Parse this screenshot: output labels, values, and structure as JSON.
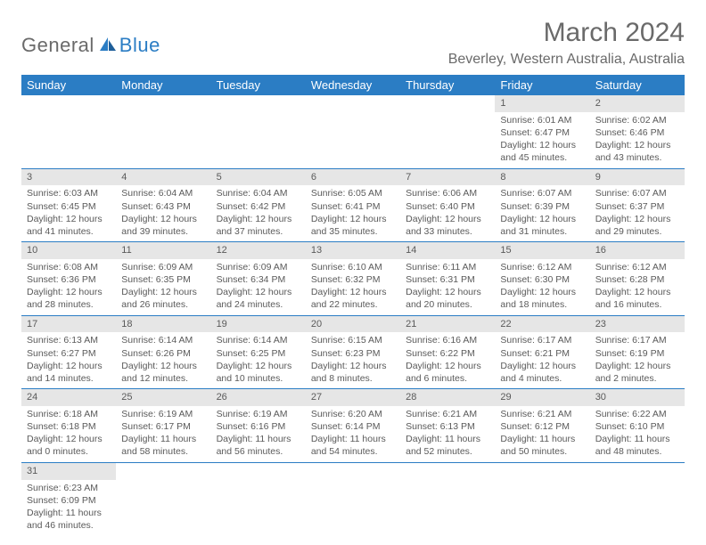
{
  "logo": {
    "general": "General",
    "blue": "Blue"
  },
  "title": {
    "month": "March 2024",
    "location": "Beverley, Western Australia, Australia"
  },
  "dayHeaders": [
    "Sunday",
    "Monday",
    "Tuesday",
    "Wednesday",
    "Thursday",
    "Friday",
    "Saturday"
  ],
  "colors": {
    "header_bg": "#2b7dc4",
    "header_text": "#ffffff",
    "daynum_bg": "#e6e6e6",
    "text": "#5a5a5a",
    "border": "#2b7dc4"
  },
  "weeks": [
    [
      null,
      null,
      null,
      null,
      null,
      {
        "n": "1",
        "sr": "Sunrise: 6:01 AM",
        "ss": "Sunset: 6:47 PM",
        "d1": "Daylight: 12 hours",
        "d2": "and 45 minutes."
      },
      {
        "n": "2",
        "sr": "Sunrise: 6:02 AM",
        "ss": "Sunset: 6:46 PM",
        "d1": "Daylight: 12 hours",
        "d2": "and 43 minutes."
      }
    ],
    [
      {
        "n": "3",
        "sr": "Sunrise: 6:03 AM",
        "ss": "Sunset: 6:45 PM",
        "d1": "Daylight: 12 hours",
        "d2": "and 41 minutes."
      },
      {
        "n": "4",
        "sr": "Sunrise: 6:04 AM",
        "ss": "Sunset: 6:43 PM",
        "d1": "Daylight: 12 hours",
        "d2": "and 39 minutes."
      },
      {
        "n": "5",
        "sr": "Sunrise: 6:04 AM",
        "ss": "Sunset: 6:42 PM",
        "d1": "Daylight: 12 hours",
        "d2": "and 37 minutes."
      },
      {
        "n": "6",
        "sr": "Sunrise: 6:05 AM",
        "ss": "Sunset: 6:41 PM",
        "d1": "Daylight: 12 hours",
        "d2": "and 35 minutes."
      },
      {
        "n": "7",
        "sr": "Sunrise: 6:06 AM",
        "ss": "Sunset: 6:40 PM",
        "d1": "Daylight: 12 hours",
        "d2": "and 33 minutes."
      },
      {
        "n": "8",
        "sr": "Sunrise: 6:07 AM",
        "ss": "Sunset: 6:39 PM",
        "d1": "Daylight: 12 hours",
        "d2": "and 31 minutes."
      },
      {
        "n": "9",
        "sr": "Sunrise: 6:07 AM",
        "ss": "Sunset: 6:37 PM",
        "d1": "Daylight: 12 hours",
        "d2": "and 29 minutes."
      }
    ],
    [
      {
        "n": "10",
        "sr": "Sunrise: 6:08 AM",
        "ss": "Sunset: 6:36 PM",
        "d1": "Daylight: 12 hours",
        "d2": "and 28 minutes."
      },
      {
        "n": "11",
        "sr": "Sunrise: 6:09 AM",
        "ss": "Sunset: 6:35 PM",
        "d1": "Daylight: 12 hours",
        "d2": "and 26 minutes."
      },
      {
        "n": "12",
        "sr": "Sunrise: 6:09 AM",
        "ss": "Sunset: 6:34 PM",
        "d1": "Daylight: 12 hours",
        "d2": "and 24 minutes."
      },
      {
        "n": "13",
        "sr": "Sunrise: 6:10 AM",
        "ss": "Sunset: 6:32 PM",
        "d1": "Daylight: 12 hours",
        "d2": "and 22 minutes."
      },
      {
        "n": "14",
        "sr": "Sunrise: 6:11 AM",
        "ss": "Sunset: 6:31 PM",
        "d1": "Daylight: 12 hours",
        "d2": "and 20 minutes."
      },
      {
        "n": "15",
        "sr": "Sunrise: 6:12 AM",
        "ss": "Sunset: 6:30 PM",
        "d1": "Daylight: 12 hours",
        "d2": "and 18 minutes."
      },
      {
        "n": "16",
        "sr": "Sunrise: 6:12 AM",
        "ss": "Sunset: 6:28 PM",
        "d1": "Daylight: 12 hours",
        "d2": "and 16 minutes."
      }
    ],
    [
      {
        "n": "17",
        "sr": "Sunrise: 6:13 AM",
        "ss": "Sunset: 6:27 PM",
        "d1": "Daylight: 12 hours",
        "d2": "and 14 minutes."
      },
      {
        "n": "18",
        "sr": "Sunrise: 6:14 AM",
        "ss": "Sunset: 6:26 PM",
        "d1": "Daylight: 12 hours",
        "d2": "and 12 minutes."
      },
      {
        "n": "19",
        "sr": "Sunrise: 6:14 AM",
        "ss": "Sunset: 6:25 PM",
        "d1": "Daylight: 12 hours",
        "d2": "and 10 minutes."
      },
      {
        "n": "20",
        "sr": "Sunrise: 6:15 AM",
        "ss": "Sunset: 6:23 PM",
        "d1": "Daylight: 12 hours",
        "d2": "and 8 minutes."
      },
      {
        "n": "21",
        "sr": "Sunrise: 6:16 AM",
        "ss": "Sunset: 6:22 PM",
        "d1": "Daylight: 12 hours",
        "d2": "and 6 minutes."
      },
      {
        "n": "22",
        "sr": "Sunrise: 6:17 AM",
        "ss": "Sunset: 6:21 PM",
        "d1": "Daylight: 12 hours",
        "d2": "and 4 minutes."
      },
      {
        "n": "23",
        "sr": "Sunrise: 6:17 AM",
        "ss": "Sunset: 6:19 PM",
        "d1": "Daylight: 12 hours",
        "d2": "and 2 minutes."
      }
    ],
    [
      {
        "n": "24",
        "sr": "Sunrise: 6:18 AM",
        "ss": "Sunset: 6:18 PM",
        "d1": "Daylight: 12 hours",
        "d2": "and 0 minutes."
      },
      {
        "n": "25",
        "sr": "Sunrise: 6:19 AM",
        "ss": "Sunset: 6:17 PM",
        "d1": "Daylight: 11 hours",
        "d2": "and 58 minutes."
      },
      {
        "n": "26",
        "sr": "Sunrise: 6:19 AM",
        "ss": "Sunset: 6:16 PM",
        "d1": "Daylight: 11 hours",
        "d2": "and 56 minutes."
      },
      {
        "n": "27",
        "sr": "Sunrise: 6:20 AM",
        "ss": "Sunset: 6:14 PM",
        "d1": "Daylight: 11 hours",
        "d2": "and 54 minutes."
      },
      {
        "n": "28",
        "sr": "Sunrise: 6:21 AM",
        "ss": "Sunset: 6:13 PM",
        "d1": "Daylight: 11 hours",
        "d2": "and 52 minutes."
      },
      {
        "n": "29",
        "sr": "Sunrise: 6:21 AM",
        "ss": "Sunset: 6:12 PM",
        "d1": "Daylight: 11 hours",
        "d2": "and 50 minutes."
      },
      {
        "n": "30",
        "sr": "Sunrise: 6:22 AM",
        "ss": "Sunset: 6:10 PM",
        "d1": "Daylight: 11 hours",
        "d2": "and 48 minutes."
      }
    ],
    [
      {
        "n": "31",
        "sr": "Sunrise: 6:23 AM",
        "ss": "Sunset: 6:09 PM",
        "d1": "Daylight: 11 hours",
        "d2": "and 46 minutes."
      },
      null,
      null,
      null,
      null,
      null,
      null
    ]
  ]
}
